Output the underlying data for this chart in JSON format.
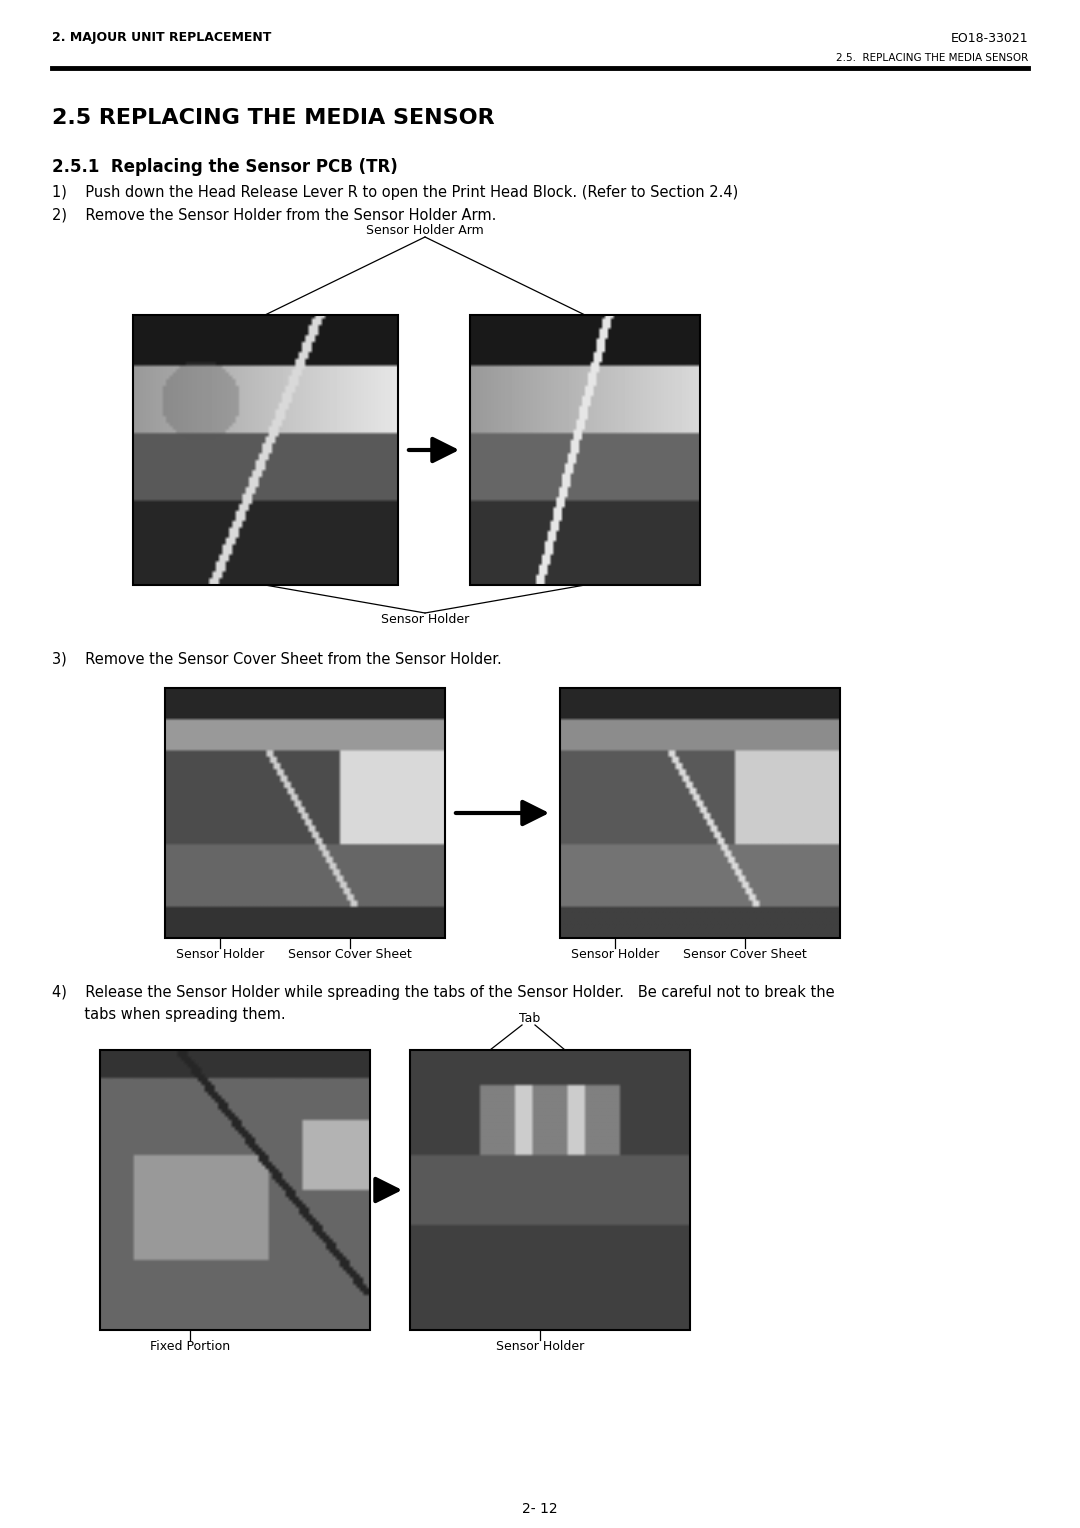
{
  "page_bg": "#ffffff",
  "header_left": "2. MAJOUR UNIT REPLACEMENT",
  "header_right": "EO18-33021",
  "subheader": "2.5.  REPLACING THE MEDIA SENSOR",
  "section_title": "2.5 REPLACING THE MEDIA SENSOR",
  "subsection_title": "2.5.1  Replacing the Sensor PCB (TR)",
  "step1": "1)    Push down the Head Release Lever R to open the Print Head Block. (Refer to Section 2.4)",
  "step2": "2)    Remove the Sensor Holder from the Sensor Holder Arm.",
  "step3": "3)    Remove the Sensor Cover Sheet from the Sensor Holder.",
  "step4_line1": "4)    Release the Sensor Holder while spreading the tabs of the Sensor Holder.   Be careful not to break the",
  "step4_line2": "       tabs when spreading them.",
  "label_sensor_holder_arm": "Sensor Holder Arm",
  "label_sensor_holder_fig1": "Sensor Holder",
  "label_sensor_holder_fig3a": "Sensor Holder",
  "label_sensor_cover_fig3a": "Sensor Cover Sheet",
  "label_sensor_holder_fig3b": "Sensor Holder",
  "label_sensor_cover_fig3b": "Sensor Cover Sheet",
  "label_tab": "Tab",
  "label_fixed_portion": "Fixed Portion",
  "label_sensor_holder_fig4": "Sensor Holder",
  "page_number": "2- 12",
  "text_color": "#000000",
  "fig_width": 10.8,
  "fig_height": 15.28
}
